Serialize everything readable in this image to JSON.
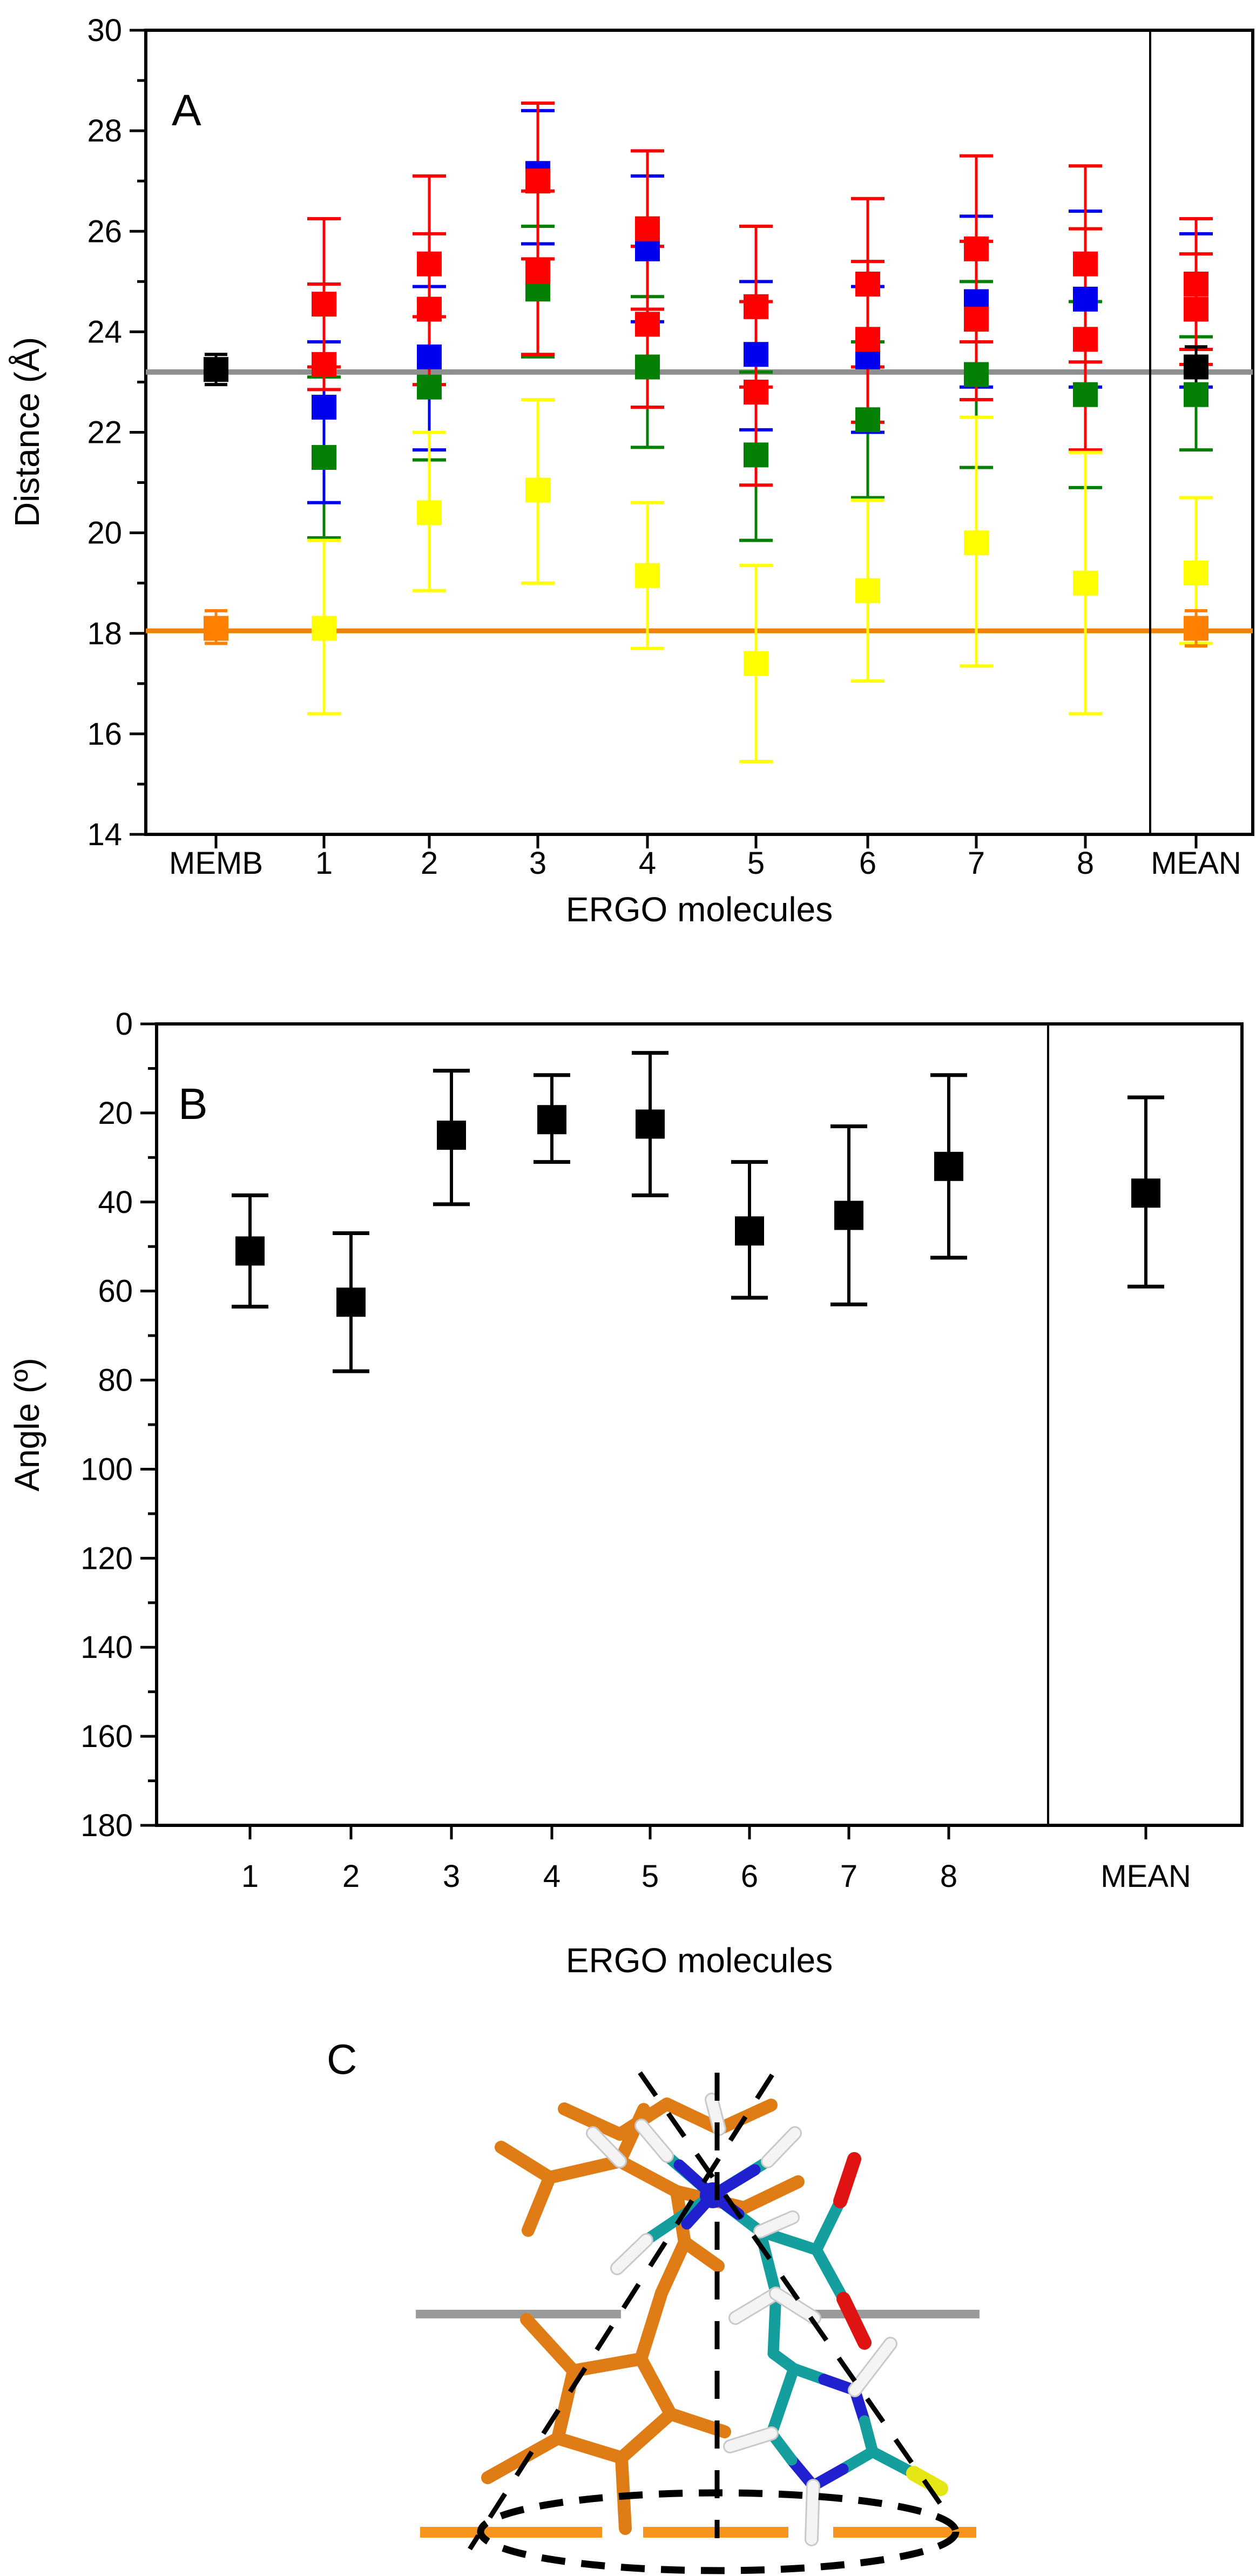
{
  "page": {
    "background": "#FFFFFF"
  },
  "chart_data": [
    {
      "id": "panel_a",
      "type": "scatter",
      "panel_label": "A",
      "xlabel": "ERGO molecules",
      "ylabel": "Distance (Å)",
      "ylim": [
        14,
        30
      ],
      "y_top_value": 30,
      "y_bottom_value": 14,
      "ytick_major": 2,
      "ytick_minor": 1,
      "grid": false,
      "legend_position": "none",
      "categories": [
        "MEMB",
        "1",
        "2",
        "3",
        "4",
        "5",
        "6",
        "7",
        "8",
        "MEAN"
      ],
      "separator_before_category": "MEAN",
      "series_colors": {
        "red": "#FF0000",
        "blue": "#0000EE",
        "green": "#048004",
        "yellow": "#FFFF00",
        "black": "#000000",
        "orange": "#FF8000"
      },
      "reference_lines": [
        {
          "name": "gray_line",
          "value": 23.2,
          "color": "#8F8F8F",
          "width": 10
        },
        {
          "name": "orange_line",
          "value": 18.05,
          "color": "#F08200",
          "width": 9
        }
      ],
      "points": [
        {
          "category": "MEMB",
          "series": "black",
          "value": 23.25,
          "err_lo": 22.95,
          "err_hi": 23.55
        },
        {
          "category": "MEMB",
          "series": "orange",
          "value": 18.1,
          "err_lo": 17.8,
          "err_hi": 18.45
        },
        {
          "category": "1",
          "series": "green",
          "value": 21.5,
          "err_lo": 19.9,
          "err_hi": 23.1
        },
        {
          "category": "1",
          "series": "blue",
          "value": 22.5,
          "err_lo": 20.6,
          "err_hi": 23.8
        },
        {
          "category": "1",
          "series": "red",
          "value": 23.35,
          "err_lo": 22.85,
          "err_hi": 24.95
        },
        {
          "category": "1",
          "series": "red",
          "value": 24.55,
          "err_lo": 23.3,
          "err_hi": 26.25
        },
        {
          "category": "1",
          "series": "yellow",
          "value": 18.1,
          "err_lo": 16.4,
          "err_hi": 19.85
        },
        {
          "category": "2",
          "series": "green",
          "value": 22.9,
          "err_lo": 21.45,
          "err_hi": 24.3
        },
        {
          "category": "2",
          "series": "blue",
          "value": 23.5,
          "err_lo": 21.65,
          "err_hi": 24.9
        },
        {
          "category": "2",
          "series": "red",
          "value": 24.45,
          "err_lo": 22.95,
          "err_hi": 25.95
        },
        {
          "category": "2",
          "series": "red",
          "value": 25.35,
          "err_lo": 24.3,
          "err_hi": 27.1
        },
        {
          "category": "2",
          "series": "yellow",
          "value": 20.4,
          "err_lo": 18.85,
          "err_hi": 22.0
        },
        {
          "category": "3",
          "series": "green",
          "value": 24.85,
          "err_lo": 23.5,
          "err_hi": 26.1
        },
        {
          "category": "3",
          "series": "blue",
          "value": 27.15,
          "err_lo": 25.75,
          "err_hi": 28.4
        },
        {
          "category": "3",
          "series": "red",
          "value": 25.2,
          "err_lo": 23.55,
          "err_hi": 26.8
        },
        {
          "category": "3",
          "series": "red",
          "value": 27.0,
          "err_lo": 25.45,
          "err_hi": 28.55
        },
        {
          "category": "3",
          "series": "yellow",
          "value": 20.85,
          "err_lo": 19.0,
          "err_hi": 22.65
        },
        {
          "category": "4",
          "series": "green",
          "value": 23.3,
          "err_lo": 21.7,
          "err_hi": 24.7
        },
        {
          "category": "4",
          "series": "blue",
          "value": 25.65,
          "err_lo": 24.2,
          "err_hi": 27.1
        },
        {
          "category": "4",
          "series": "red",
          "value": 24.15,
          "err_lo": 22.5,
          "err_hi": 25.7
        },
        {
          "category": "4",
          "series": "red",
          "value": 26.05,
          "err_lo": 24.45,
          "err_hi": 27.6
        },
        {
          "category": "4",
          "series": "yellow",
          "value": 19.15,
          "err_lo": 17.7,
          "err_hi": 20.6
        },
        {
          "category": "5",
          "series": "green",
          "value": 21.55,
          "err_lo": 19.85,
          "err_hi": 23.2
        },
        {
          "category": "5",
          "series": "blue",
          "value": 23.55,
          "err_lo": 22.05,
          "err_hi": 25.0
        },
        {
          "category": "5",
          "series": "red",
          "value": 22.8,
          "err_lo": 20.95,
          "err_hi": 24.6
        },
        {
          "category": "5",
          "series": "red",
          "value": 24.5,
          "err_lo": 22.9,
          "err_hi": 26.1
        },
        {
          "category": "5",
          "series": "yellow",
          "value": 17.4,
          "err_lo": 15.45,
          "err_hi": 19.35
        },
        {
          "category": "6",
          "series": "green",
          "value": 22.25,
          "err_lo": 20.7,
          "err_hi": 23.8
        },
        {
          "category": "6",
          "series": "blue",
          "value": 23.5,
          "err_lo": 22.0,
          "err_hi": 24.9
        },
        {
          "category": "6",
          "series": "red",
          "value": 23.85,
          "err_lo": 22.2,
          "err_hi": 25.4
        },
        {
          "category": "6",
          "series": "red",
          "value": 24.95,
          "err_lo": 23.3,
          "err_hi": 26.65
        },
        {
          "category": "6",
          "series": "yellow",
          "value": 18.85,
          "err_lo": 17.05,
          "err_hi": 20.65
        },
        {
          "category": "7",
          "series": "green",
          "value": 23.15,
          "err_lo": 21.3,
          "err_hi": 25.0
        },
        {
          "category": "7",
          "series": "blue",
          "value": 24.6,
          "err_lo": 22.9,
          "err_hi": 26.3
        },
        {
          "category": "7",
          "series": "red",
          "value": 24.25,
          "err_lo": 22.65,
          "err_hi": 25.8
        },
        {
          "category": "7",
          "series": "red",
          "value": 25.65,
          "err_lo": 23.8,
          "err_hi": 27.5
        },
        {
          "category": "7",
          "series": "yellow",
          "value": 19.8,
          "err_lo": 17.35,
          "err_hi": 22.3
        },
        {
          "category": "8",
          "series": "green",
          "value": 22.75,
          "err_lo": 20.9,
          "err_hi": 24.6
        },
        {
          "category": "8",
          "series": "blue",
          "value": 24.65,
          "err_lo": 22.9,
          "err_hi": 26.4
        },
        {
          "category": "8",
          "series": "red",
          "value": 23.85,
          "err_lo": 21.65,
          "err_hi": 26.05
        },
        {
          "category": "8",
          "series": "red",
          "value": 25.35,
          "err_lo": 23.4,
          "err_hi": 27.3
        },
        {
          "category": "8",
          "series": "yellow",
          "value": 19.0,
          "err_lo": 16.4,
          "err_hi": 21.6
        },
        {
          "category": "MEAN",
          "series": "blue",
          "value": 24.45,
          "err_lo": 22.9,
          "err_hi": 25.95
        },
        {
          "category": "MEAN",
          "series": "green",
          "value": 22.75,
          "err_lo": 21.65,
          "err_hi": 23.9
        },
        {
          "category": "MEAN",
          "series": "red",
          "value": 24.45,
          "err_lo": 23.35,
          "err_hi": 25.55
        },
        {
          "category": "MEAN",
          "series": "red",
          "value": 24.95,
          "err_lo": 23.65,
          "err_hi": 26.25
        },
        {
          "category": "MEAN",
          "series": "black",
          "value": 23.3,
          "err_lo": 22.9,
          "err_hi": 23.7
        },
        {
          "category": "MEAN",
          "series": "yellow",
          "value": 19.2,
          "err_lo": 17.8,
          "err_hi": 20.7
        },
        {
          "category": "MEAN",
          "series": "orange",
          "value": 18.1,
          "err_lo": 17.75,
          "err_hi": 18.45
        }
      ]
    },
    {
      "id": "panel_b",
      "type": "scatter",
      "panel_label": "B",
      "xlabel": "ERGO molecules",
      "ylabel": "Angle (º)",
      "ylim": [
        0,
        180
      ],
      "y_top_value": 0,
      "y_bottom_value": 180,
      "ytick_major": 20,
      "ytick_minor": 10,
      "grid": false,
      "legend_position": "none",
      "categories": [
        "1",
        "2",
        "3",
        "4",
        "5",
        "6",
        "7",
        "8",
        "MEAN"
      ],
      "separator_before_category": "MEAN",
      "series_colors": {
        "black": "#000000"
      },
      "reference_lines": [],
      "points": [
        {
          "category": "1",
          "series": "black",
          "value": 51,
          "err_lo": 38.5,
          "err_hi": 63.5
        },
        {
          "category": "2",
          "series": "black",
          "value": 62.5,
          "err_lo": 47,
          "err_hi": 78
        },
        {
          "category": "3",
          "series": "black",
          "value": 25,
          "err_lo": 10.5,
          "err_hi": 40.5
        },
        {
          "category": "4",
          "series": "black",
          "value": 21.5,
          "err_lo": 11.5,
          "err_hi": 31
        },
        {
          "category": "5",
          "series": "black",
          "value": 22.5,
          "err_lo": 6.5,
          "err_hi": 38.5
        },
        {
          "category": "6",
          "series": "black",
          "value": 46.5,
          "err_lo": 31,
          "err_hi": 61.5
        },
        {
          "category": "7",
          "series": "black",
          "value": 43,
          "err_lo": 23,
          "err_hi": 63
        },
        {
          "category": "8",
          "series": "black",
          "value": 32,
          "err_lo": 11.5,
          "err_hi": 52.5
        },
        {
          "category": "MEAN",
          "series": "black",
          "value": 38,
          "err_lo": 16.5,
          "err_hi": 59
        }
      ]
    },
    {
      "id": "panel_c",
      "type": "molecular-structure",
      "panel_label": "C",
      "colors": {
        "o": "#E07C16",
        "t": "#149E9E",
        "n": "#2020CF",
        "r": "#E01313",
        "w": "#F4F4F4",
        "wu": "#C9C9C9",
        "y": "#E6E616",
        "gray_bar": "#9A9A9A",
        "orange_bar": "#F7941D",
        "guide": "#000000"
      },
      "gray_bars": {
        "y": 4285,
        "height": 16,
        "segments": [
          [
            770,
            1150
          ],
          [
            1500,
            1814
          ]
        ]
      },
      "orange_bars": {
        "y": 4689,
        "height": 20,
        "segments": [
          [
            778,
            1115
          ],
          [
            1191,
            1460
          ],
          [
            1543,
            1808
          ]
        ]
      },
      "guides": {
        "vertical_line": {
          "x": 1328,
          "y1": 3838,
          "y2": 4700
        },
        "cone_lines": [
          [
            1185,
            3838,
            1758,
            4660
          ],
          [
            1430,
            3842,
            870,
            4720
          ]
        ],
        "ellipse": {
          "cx": 1330,
          "cy": 4688,
          "rx": 440,
          "ry": 72
        }
      },
      "n_plus_atom": {
        "x": 1320,
        "y": 4065,
        "r": 24
      },
      "segments": [
        [
          1062,
          4390,
          1187,
          4368,
          "o",
          24
        ],
        [
          1187,
          4368,
          1242,
          4470,
          "o",
          24
        ],
        [
          1242,
          4470,
          1151,
          4551,
          "o",
          24
        ],
        [
          1151,
          4551,
          1033,
          4515,
          "o",
          24
        ],
        [
          1033,
          4515,
          1062,
          4390,
          "o",
          24
        ],
        [
          1062,
          4390,
          975,
          4295,
          "o",
          24
        ],
        [
          1033,
          4515,
          903,
          4588,
          "o",
          24
        ],
        [
          1151,
          4551,
          1158,
          4682,
          "o",
          24
        ],
        [
          1242,
          4470,
          1342,
          4503,
          "o",
          24
        ],
        [
          1187,
          4368,
          1225,
          4246,
          "o",
          24
        ],
        [
          1225,
          4246,
          1268,
          4152,
          "o",
          24
        ],
        [
          1268,
          4152,
          1253,
          4058,
          "o",
          24
        ],
        [
          1253,
          4058,
          1148,
          4002,
          "o",
          24
        ],
        [
          1148,
          4002,
          1018,
          4032,
          "o",
          24
        ],
        [
          1018,
          4032,
          928,
          3976,
          "o",
          24
        ],
        [
          1018,
          4032,
          978,
          4130,
          "o",
          24
        ],
        [
          1148,
          4002,
          1192,
          3906,
          "o",
          24
        ],
        [
          1253,
          4058,
          1378,
          4088,
          "o",
          24
        ],
        [
          1378,
          4088,
          1478,
          4040,
          "o",
          24
        ],
        [
          1268,
          4152,
          1330,
          4196,
          "o",
          24
        ],
        [
          1235,
          3896,
          1332,
          3942,
          "o",
          24
        ],
        [
          1332,
          3942,
          1428,
          3898,
          "o",
          24
        ],
        [
          1045,
          3905,
          1148,
          3952,
          "o",
          24
        ],
        [
          1148,
          3952,
          1235,
          3896,
          "o",
          24
        ],
        [
          1320,
          4065,
          1235,
          3992,
          "t",
          21
        ],
        [
          1320,
          4065,
          1422,
          4002,
          "t",
          21
        ],
        [
          1320,
          4065,
          1197,
          4148,
          "t",
          21
        ],
        [
          1320,
          4065,
          1408,
          4132,
          "t",
          21
        ],
        [
          1408,
          4132,
          1437,
          4247,
          "t",
          21
        ],
        [
          1437,
          4247,
          1432,
          4358,
          "t",
          21
        ],
        [
          1432,
          4358,
          1470,
          4386,
          "t",
          21
        ],
        [
          1408,
          4132,
          1512,
          4166,
          "t",
          21
        ],
        [
          1512,
          4166,
          1556,
          4076,
          "t",
          21
        ],
        [
          1512,
          4166,
          1562,
          4257,
          "t",
          21
        ],
        [
          1470,
          4386,
          1526,
          4406,
          "t",
          21
        ],
        [
          1526,
          4406,
          1583,
          4426,
          "n",
          21
        ],
        [
          1583,
          4426,
          1601,
          4483,
          "n",
          21
        ],
        [
          1601,
          4483,
          1616,
          4540,
          "t",
          21
        ],
        [
          1616,
          4540,
          1561,
          4572,
          "t",
          21
        ],
        [
          1561,
          4572,
          1506,
          4603,
          "n",
          21
        ],
        [
          1506,
          4603,
          1466,
          4555,
          "n",
          21
        ],
        [
          1466,
          4555,
          1429,
          4506,
          "t",
          21
        ],
        [
          1429,
          4506,
          1470,
          4386,
          "t",
          21
        ],
        [
          1616,
          4540,
          1692,
          4580,
          "t",
          21
        ],
        [
          1320,
          4065,
          1258,
          4009,
          "n",
          21
        ],
        [
          1320,
          4065,
          1398,
          4018,
          "n",
          21
        ],
        [
          1320,
          4065,
          1368,
          4100,
          "n",
          21
        ],
        [
          1320,
          4065,
          1272,
          4118,
          "n",
          21
        ],
        [
          1556,
          4076,
          1582,
          3998,
          "r",
          26
        ],
        [
          1562,
          4257,
          1601,
          4338,
          "r",
          26
        ],
        [
          1692,
          4580,
          1742,
          4608,
          "y",
          28
        ],
        [
          1235,
          3992,
          1188,
          3936,
          "w",
          20
        ],
        [
          1422,
          4002,
          1472,
          3950,
          "w",
          20
        ],
        [
          1197,
          4148,
          1143,
          4200,
          "w",
          20
        ],
        [
          1437,
          4247,
          1362,
          4292,
          "w",
          20
        ],
        [
          1437,
          4247,
          1508,
          4292,
          "w",
          20
        ],
        [
          1429,
          4506,
          1352,
          4530,
          "w",
          20
        ],
        [
          1583,
          4426,
          1649,
          4340,
          "w",
          20
        ],
        [
          1506,
          4603,
          1503,
          4702,
          "w",
          20
        ],
        [
          1148,
          4002,
          1098,
          3950,
          "w",
          20
        ],
        [
          1332,
          3942,
          1318,
          3888,
          "w",
          20
        ],
        [
          1408,
          4132,
          1468,
          4106,
          "w",
          20
        ]
      ]
    }
  ]
}
